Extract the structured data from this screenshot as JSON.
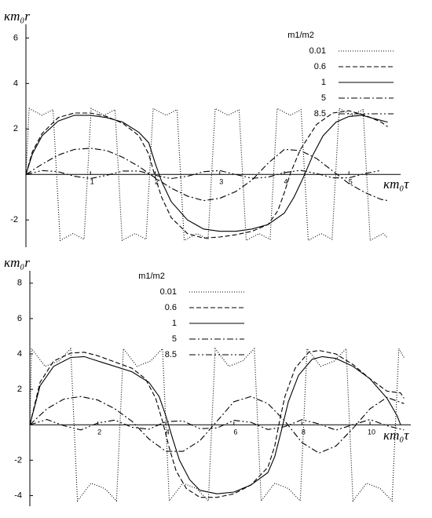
{
  "chart_data": [
    {
      "type": "line",
      "x_label": "κm₀τ",
      "y_label": "κm₀r",
      "xlim": [
        0,
        5.8
      ],
      "ylim": [
        -3.2,
        6.6
      ],
      "xticks": [
        1,
        2,
        3,
        4,
        5
      ],
      "yticks": [
        -2,
        2,
        4,
        6
      ],
      "legend_title": "m1/m2",
      "legend": "upper right",
      "series": [
        {
          "name": "0.01",
          "color": "#000000",
          "style": "dotted",
          "x": [
            0,
            0.05,
            0.25,
            0.42,
            0.53,
            0.73,
            0.9,
            1.01,
            1.21,
            1.38,
            1.49,
            1.69,
            1.86,
            1.97,
            2.17,
            2.34,
            2.45,
            2.65,
            2.82,
            2.93,
            3.13,
            3.3,
            3.41,
            3.61,
            3.78,
            3.89,
            4.09,
            4.26,
            4.37,
            4.57,
            4.74,
            4.85,
            5.05,
            5.22,
            5.33,
            5.53,
            5.6
          ],
          "values": [
            0,
            2.9,
            2.6,
            2.85,
            -2.9,
            -2.6,
            -2.85,
            2.9,
            2.6,
            2.85,
            -2.9,
            -2.6,
            -2.85,
            2.9,
            2.6,
            2.85,
            -2.9,
            -2.6,
            -2.85,
            2.9,
            2.6,
            2.85,
            -2.9,
            -2.6,
            -2.85,
            2.9,
            2.6,
            2.85,
            -2.9,
            -2.6,
            -2.85,
            2.9,
            2.6,
            2.85,
            -2.9,
            -2.6,
            -2.8
          ]
        },
        {
          "name": "0.6",
          "color": "#000000",
          "style": "dashed",
          "x": [
            0,
            0.1,
            0.25,
            0.5,
            0.75,
            1.0,
            1.25,
            1.5,
            1.75,
            1.9,
            2.0,
            2.1,
            2.25,
            2.5,
            2.75,
            3.0,
            3.25,
            3.5,
            3.75,
            3.9,
            4.0,
            4.1,
            4.25,
            4.5,
            4.75,
            5.0,
            5.25,
            5.5,
            5.6
          ],
          "values": [
            0,
            1.0,
            1.8,
            2.5,
            2.7,
            2.7,
            2.55,
            2.25,
            1.7,
            0.9,
            -0.1,
            -1.0,
            -1.9,
            -2.6,
            -2.8,
            -2.75,
            -2.65,
            -2.5,
            -2.2,
            -1.6,
            -0.8,
            0.1,
            1.1,
            2.2,
            2.7,
            2.8,
            2.6,
            2.3,
            2.1
          ]
        },
        {
          "name": "1",
          "color": "#000000",
          "style": "solid",
          "x": [
            0,
            0.1,
            0.25,
            0.5,
            0.75,
            1.0,
            1.25,
            1.5,
            1.75,
            1.9,
            2.0,
            2.1,
            2.25,
            2.5,
            2.75,
            3.0,
            3.25,
            3.5,
            3.75,
            4.0,
            4.15,
            4.3,
            4.45,
            4.6,
            4.8,
            5.0,
            5.2,
            5.4,
            5.6
          ],
          "values": [
            0,
            0.9,
            1.7,
            2.35,
            2.6,
            2.6,
            2.5,
            2.3,
            1.85,
            1.4,
            0.5,
            -0.3,
            -1.2,
            -2.0,
            -2.4,
            -2.5,
            -2.5,
            -2.4,
            -2.2,
            -1.7,
            -1.0,
            -0.1,
            0.9,
            1.7,
            2.3,
            2.55,
            2.6,
            2.45,
            2.3
          ]
        },
        {
          "name": "5",
          "color": "#000000",
          "style": "dashdot",
          "x": [
            0,
            0.25,
            0.5,
            0.75,
            1.0,
            1.25,
            1.5,
            1.75,
            2.0,
            2.25,
            2.5,
            2.75,
            3.0,
            3.25,
            3.5,
            3.75,
            4.0,
            4.25,
            4.5,
            4.75,
            5.0,
            5.25,
            5.5,
            5.6
          ],
          "values": [
            0,
            0.45,
            0.85,
            1.1,
            1.15,
            1.05,
            0.75,
            0.35,
            -0.15,
            -0.6,
            -0.95,
            -1.15,
            -1.05,
            -0.75,
            -0.25,
            0.5,
            1.1,
            1.05,
            0.7,
            0.15,
            -0.4,
            -0.8,
            -1.1,
            -1.15
          ]
        },
        {
          "name": "8.5",
          "color": "#000000",
          "style": "dashdotdot",
          "x": [
            0,
            0.25,
            0.5,
            0.75,
            1.0,
            1.25,
            1.5,
            1.75,
            2.0,
            2.25,
            2.5,
            2.75,
            3.0,
            3.25,
            3.5,
            3.75,
            4.0,
            4.25,
            4.5,
            4.75,
            5.0,
            5.25,
            5.5
          ],
          "values": [
            0,
            0.17,
            0.12,
            -0.08,
            -0.18,
            -0.04,
            0.15,
            0.15,
            -0.04,
            -0.18,
            -0.08,
            0.12,
            0.17,
            0,
            -0.17,
            -0.12,
            0.08,
            0.18,
            0.04,
            -0.15,
            -0.15,
            0.04,
            0.18
          ]
        }
      ]
    },
    {
      "type": "line",
      "x_label": "κm₀τ",
      "y_label": "κm₀r",
      "xlim": [
        0,
        11.2
      ],
      "ylim": [
        -4.6,
        8.7
      ],
      "xticks": [
        2,
        4,
        6,
        8,
        10
      ],
      "yticks": [
        -4,
        -2,
        2,
        4,
        6,
        8
      ],
      "legend_title": "m1/m2",
      "legend": "upper center",
      "series": [
        {
          "name": "0.01",
          "color": "#000000",
          "style": "dotted",
          "x": [
            0,
            0.05,
            0.45,
            0.85,
            1.2,
            1.4,
            1.8,
            2.2,
            2.55,
            2.75,
            3.15,
            3.55,
            3.9,
            4.1,
            4.5,
            4.9,
            5.25,
            5.45,
            5.85,
            6.25,
            6.6,
            6.8,
            7.2,
            7.6,
            7.95,
            8.15,
            8.55,
            8.95,
            9.3,
            9.5,
            9.9,
            10.3,
            10.65,
            10.85,
            11.0
          ],
          "values": [
            0,
            4.3,
            3.3,
            3.6,
            4.3,
            -4.3,
            -3.3,
            -3.6,
            -4.3,
            4.3,
            3.3,
            3.6,
            4.3,
            -4.3,
            -3.3,
            -3.6,
            -4.3,
            4.3,
            3.3,
            3.6,
            4.3,
            -4.3,
            -3.3,
            -3.6,
            -4.3,
            4.3,
            3.3,
            3.6,
            4.3,
            -4.3,
            -3.3,
            -3.6,
            -4.3,
            4.3,
            3.8
          ]
        },
        {
          "name": "0.6",
          "color": "#000000",
          "style": "dashed",
          "x": [
            0,
            0.3,
            0.7,
            1.2,
            1.6,
            2.0,
            3.0,
            3.4,
            3.7,
            3.9,
            4.1,
            4.3,
            4.6,
            5.0,
            5.5,
            6.0,
            6.5,
            7.0,
            7.2,
            7.35,
            7.5,
            7.8,
            8.2,
            8.5,
            9.0,
            9.5,
            10.0,
            10.5,
            10.9,
            11.0
          ],
          "values": [
            0,
            2.4,
            3.6,
            4.05,
            4.1,
            3.9,
            3.2,
            2.6,
            1.5,
            0.2,
            -1.3,
            -2.6,
            -3.6,
            -4.1,
            -4.1,
            -3.9,
            -3.4,
            -2.4,
            -1.2,
            0.3,
            1.6,
            3.2,
            4.1,
            4.2,
            4.0,
            3.4,
            2.6,
            1.9,
            1.8,
            1.5
          ]
        },
        {
          "name": "1",
          "color": "#000000",
          "style": "solid",
          "x": [
            0,
            0.3,
            0.7,
            1.2,
            1.6,
            2.0,
            3.0,
            3.5,
            3.8,
            4.0,
            4.2,
            4.4,
            4.7,
            5.0,
            5.5,
            6.0,
            6.5,
            7.0,
            7.2,
            7.4,
            7.6,
            7.9,
            8.3,
            8.6,
            9.0,
            9.5,
            10.0,
            10.5,
            10.8,
            10.9
          ],
          "values": [
            0,
            2.2,
            3.3,
            3.8,
            3.85,
            3.6,
            3.0,
            2.4,
            1.6,
            0.5,
            -0.8,
            -2.0,
            -3.1,
            -3.7,
            -3.9,
            -3.8,
            -3.4,
            -2.7,
            -1.8,
            -0.3,
            1.3,
            2.8,
            3.7,
            3.85,
            3.75,
            3.3,
            2.6,
            1.5,
            0.5,
            0
          ]
        },
        {
          "name": "5",
          "color": "#000000",
          "style": "dashdot",
          "x": [
            0,
            0.5,
            1.0,
            1.5,
            2.0,
            2.5,
            3.0,
            3.5,
            4.0,
            4.5,
            5.0,
            5.5,
            6.0,
            6.5,
            7.0,
            7.5,
            8.0,
            8.5,
            9.0,
            9.5,
            10.0,
            10.5,
            11.0
          ],
          "values": [
            0,
            0.9,
            1.45,
            1.6,
            1.4,
            0.9,
            0.2,
            -0.8,
            -1.5,
            -1.5,
            -0.9,
            0.2,
            1.3,
            1.6,
            1.2,
            0.2,
            -1.0,
            -1.6,
            -1.2,
            -0.2,
            0.9,
            1.55,
            1.2
          ]
        },
        {
          "name": "8.5",
          "color": "#000000",
          "style": "dashdotdot",
          "x": [
            0,
            0.5,
            1.0,
            1.5,
            2.0,
            2.5,
            3.0,
            3.5,
            4.0,
            4.5,
            5.0,
            5.5,
            6.0,
            6.5,
            7.0,
            7.5,
            8.0,
            8.5,
            9.0,
            9.5,
            10.0,
            10.5,
            11.0
          ],
          "values": [
            0,
            0.3,
            -0.05,
            -0.29,
            0.1,
            0.27,
            -0.14,
            -0.25,
            0.18,
            0.22,
            -0.22,
            -0.18,
            0.25,
            0.14,
            -0.27,
            -0.1,
            0.29,
            0.05,
            -0.3,
            0,
            0.3,
            -0.05,
            -0.29
          ]
        }
      ]
    }
  ]
}
